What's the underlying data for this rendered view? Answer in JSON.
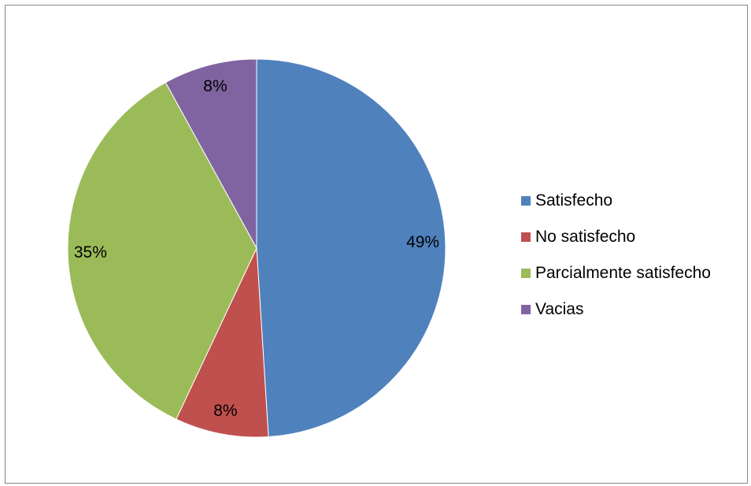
{
  "chart_data": {
    "type": "pie",
    "title": "",
    "slices": [
      {
        "name": "Satisfecho",
        "value": 49,
        "label": "49%",
        "color": "#4F81BD"
      },
      {
        "name": "No satisfecho",
        "value": 8,
        "label": "8%",
        "color": "#C0504D"
      },
      {
        "name": "Parcialmente satisfecho",
        "value": 35,
        "label": "35%",
        "color": "#9BBB59"
      },
      {
        "name": "Vacias",
        "value": 8,
        "label": "8%",
        "color": "#8064A2"
      }
    ],
    "legend_position": "right",
    "start_angle": "12 o'clock",
    "direction": "clockwise"
  }
}
